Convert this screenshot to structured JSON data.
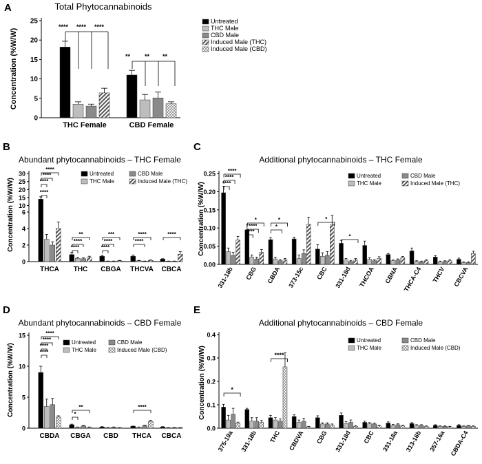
{
  "patterns": {
    "solid_black": "#000000",
    "light_gray": "#bdbdbd",
    "mid_gray": "#8a8a8a",
    "hatched": "#555555",
    "checker": "#dddddd"
  },
  "chart_data": [
    {
      "panel": "A",
      "type": "bar",
      "title": "Total Phytocannabinoids",
      "ylabel": "Concentration (%W/W)",
      "ylim": [
        0,
        25
      ],
      "yticks": [
        0,
        5,
        10,
        15,
        20,
        25
      ],
      "categories": [
        "THC Female",
        "CBD Female"
      ],
      "series": [
        {
          "name": "Untreated",
          "style": "solid_black",
          "values": [
            18.2,
            11.0
          ],
          "errors": [
            1.5,
            1.2
          ]
        },
        {
          "name": "THC Male",
          "style": "light_gray",
          "values": [
            3.5,
            4.6
          ],
          "errors": [
            0.6,
            1.4
          ]
        },
        {
          "name": "CBD Male",
          "style": "mid_gray",
          "values": [
            3.0,
            5.1
          ],
          "errors": [
            0.5,
            1.5
          ]
        },
        {
          "name": "Induced Male (THC)",
          "style": "hatched",
          "values": [
            6.4,
            null
          ],
          "errors": [
            1.2,
            null
          ]
        },
        {
          "name": "Induced Male (CBD)",
          "style": "checker",
          "values": [
            null,
            3.6
          ],
          "errors": [
            null,
            0.5
          ]
        }
      ],
      "significance": [
        "****",
        "****",
        "****",
        "**",
        "**",
        "**"
      ]
    },
    {
      "panel": "B",
      "type": "bar",
      "title": "Abundant phytocannabinoids – THC Female",
      "ylabel": "Concentration (%W/W)",
      "broken_axis": true,
      "ylim_lower": [
        0,
        6
      ],
      "ylim_upper": [
        6,
        30
      ],
      "yticks_lower": [
        0,
        2,
        4,
        6
      ],
      "yticks_upper": [
        10,
        15,
        20,
        25,
        30
      ],
      "categories": [
        "THCA",
        "THC",
        "CBGA",
        "THCVA",
        "CBCA"
      ],
      "series": [
        {
          "name": "Untreated",
          "style": "solid_black",
          "values": [
            14.0,
            0.85,
            0.65,
            0.65,
            0.3
          ],
          "errors": [
            1.5,
            0.25,
            0.1,
            0.15,
            0.05
          ]
        },
        {
          "name": "THC Male",
          "style": "light_gray",
          "values": [
            2.7,
            0.4,
            0.05,
            0.1,
            0.05
          ],
          "errors": [
            0.6,
            0.1,
            0.02,
            0.05,
            0.02
          ]
        },
        {
          "name": "CBD Male",
          "style": "mid_gray",
          "values": [
            2.0,
            0.35,
            0.05,
            0.05,
            0.05
          ],
          "errors": [
            0.4,
            0.1,
            0.02,
            0.02,
            0.02
          ]
        },
        {
          "name": "Induced Male (THC)",
          "style": "hatched",
          "values": [
            4.0,
            0.5,
            0.1,
            0.15,
            0.9
          ],
          "errors": [
            0.8,
            0.15,
            0.05,
            0.05,
            0.3
          ]
        }
      ],
      "significance": [
        "****",
        "****",
        "****",
        "****",
        "**",
        "****",
        "****",
        "***",
        "****",
        "****",
        "****",
        "****",
        "****"
      ]
    },
    {
      "panel": "C",
      "type": "bar",
      "title": "Additional phytocannabinoids – THC Female",
      "ylabel": "Concentration (%W/W)",
      "ylim": [
        0,
        0.25
      ],
      "yticks": [
        0.0,
        0.05,
        0.1,
        0.15,
        0.2,
        0.25
      ],
      "categories": [
        "331-18b",
        "CBG",
        "CBDA",
        "373-15c",
        "CBC",
        "331-18d",
        "THCOA",
        "CBNA",
        "THCA-C4",
        "THCV",
        "CBCVA"
      ],
      "series": [
        {
          "name": "Untreated",
          "style": "solid_black",
          "values": [
            0.197,
            0.095,
            0.068,
            0.07,
            0.042,
            0.058,
            0.052,
            0.027,
            0.037,
            0.02,
            0.014
          ],
          "errors": [
            0.018,
            0.015,
            0.006,
            0.005,
            0.012,
            0.008,
            0.012,
            0.003,
            0.008,
            0.004,
            0.003
          ]
        },
        {
          "name": "THC Male",
          "style": "light_gray",
          "values": [
            0.035,
            0.02,
            0.015,
            0.016,
            0.022,
            0.012,
            0.014,
            0.01,
            0.008,
            0.007,
            0.005
          ],
          "errors": [
            0.01,
            0.006,
            0.005,
            0.01,
            0.01,
            0.004,
            0.004,
            0.002,
            0.002,
            0.002,
            0.002
          ]
        },
        {
          "name": "CBD Male",
          "style": "mid_gray",
          "values": [
            0.025,
            0.015,
            0.01,
            0.03,
            0.025,
            0.008,
            0.01,
            0.012,
            0.007,
            0.008,
            0.005
          ],
          "errors": [
            0.008,
            0.005,
            0.003,
            0.01,
            0.01,
            0.003,
            0.003,
            0.003,
            0.002,
            0.002,
            0.002
          ]
        },
        {
          "name": "Induced Male (THC)",
          "style": "hatched",
          "values": [
            0.067,
            0.033,
            0.012,
            0.11,
            0.11,
            0.012,
            0.016,
            0.018,
            0.01,
            0.01,
            0.03
          ],
          "errors": [
            0.01,
            0.008,
            0.004,
            0.02,
            0.025,
            0.004,
            0.005,
            0.004,
            0.003,
            0.003,
            0.006
          ]
        }
      ],
      "significance": [
        "****",
        "****",
        "****",
        "*",
        "****",
        "****",
        "**",
        "*",
        "*",
        "*",
        "*"
      ]
    },
    {
      "panel": "D",
      "type": "bar",
      "title": "Abundant phytocannabinoids – CBD Female",
      "ylabel": "Concentration (%W/W)",
      "ylim": [
        0,
        15
      ],
      "yticks": [
        0,
        5,
        10,
        15
      ],
      "categories": [
        "CBDA",
        "CBGA",
        "CBD",
        "THCA",
        "CBCA"
      ],
      "series": [
        {
          "name": "Untreated",
          "style": "solid_black",
          "values": [
            9.0,
            0.55,
            0.2,
            0.3,
            0.2
          ],
          "errors": [
            1.0,
            0.1,
            0.05,
            0.05,
            0.05
          ]
        },
        {
          "name": "THC Male",
          "style": "light_gray",
          "values": [
            3.5,
            0.15,
            0.1,
            0.15,
            0.1
          ],
          "errors": [
            1.2,
            0.05,
            0.03,
            0.05,
            0.03
          ]
        },
        {
          "name": "CBD Male",
          "style": "mid_gray",
          "values": [
            3.8,
            0.35,
            0.15,
            0.4,
            0.1
          ],
          "errors": [
            1.0,
            0.1,
            0.05,
            0.1,
            0.03
          ]
        },
        {
          "name": "Induced Male (CBD)",
          "style": "checker",
          "values": [
            1.8,
            0.15,
            0.1,
            1.1,
            0.1
          ],
          "errors": [
            0.2,
            0.05,
            0.03,
            0.15,
            0.03
          ]
        }
      ],
      "significance": [
        "****",
        "****",
        "****",
        "****",
        "*",
        "**",
        "****"
      ]
    },
    {
      "panel": "E",
      "type": "bar",
      "title": "Additional phytocannabinoids – CBD Female",
      "ylabel": "Concentration (%W/W)",
      "ylim": [
        0,
        0.4
      ],
      "yticks": [
        0.0,
        0.1,
        0.2,
        0.3,
        0.4
      ],
      "categories": [
        "375-19a",
        "331-18b",
        "THC",
        "CBDVA",
        "CBG",
        "331-18d",
        "CBC",
        "331-18a",
        "313-16b",
        "357-16a",
        "CBDA-C4"
      ],
      "series": [
        {
          "name": "Untreated",
          "style": "solid_black",
          "values": [
            0.09,
            0.08,
            0.045,
            0.05,
            0.045,
            0.055,
            0.025,
            0.022,
            0.02,
            0.012,
            0.012
          ],
          "errors": [
            0.012,
            0.005,
            0.01,
            0.008,
            0.008,
            0.01,
            0.005,
            0.005,
            0.004,
            0.003,
            0.003
          ]
        },
        {
          "name": "THC Male",
          "style": "light_gray",
          "values": [
            0.035,
            0.03,
            0.035,
            0.025,
            0.018,
            0.02,
            0.02,
            0.012,
            0.012,
            0.008,
            0.008
          ],
          "errors": [
            0.02,
            0.015,
            0.01,
            0.01,
            0.005,
            0.008,
            0.004,
            0.004,
            0.003,
            0.002,
            0.002
          ]
        },
        {
          "name": "CBD Male",
          "style": "mid_gray",
          "values": [
            0.06,
            0.03,
            0.03,
            0.03,
            0.018,
            0.025,
            0.018,
            0.015,
            0.012,
            0.008,
            0.01
          ],
          "errors": [
            0.025,
            0.015,
            0.01,
            0.012,
            0.005,
            0.01,
            0.004,
            0.004,
            0.003,
            0.002,
            0.002
          ]
        },
        {
          "name": "Induced Male (CBD)",
          "style": "checker",
          "values": [
            0.022,
            0.025,
            0.262,
            0.006,
            0.014,
            0.008,
            0.01,
            0.01,
            0.008,
            0.006,
            0.008
          ],
          "errors": [
            0.004,
            0.008,
            0.06,
            0.002,
            0.004,
            0.003,
            0.003,
            0.003,
            0.002,
            0.002,
            0.002
          ]
        }
      ],
      "significance": [
        "*",
        "****"
      ]
    }
  ]
}
